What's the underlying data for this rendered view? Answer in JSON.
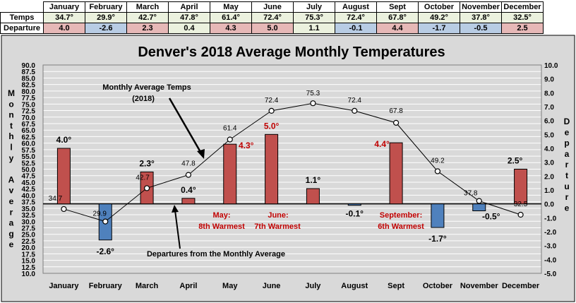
{
  "header_table": {
    "temps_label": "Temps",
    "departure_label": "Departure",
    "columns": [
      {
        "month": "January",
        "temp": "34.7°",
        "dep": "4.0"
      },
      {
        "month": "February",
        "temp": "29.9°",
        "dep": "-2.6"
      },
      {
        "month": "March",
        "temp": "42.7°",
        "dep": "2.3"
      },
      {
        "month": "April",
        "temp": "47.8°",
        "dep": "0.4"
      },
      {
        "month": "May",
        "temp": "61.4°",
        "dep": "4.3"
      },
      {
        "month": "June",
        "temp": "72.4°",
        "dep": "5.0"
      },
      {
        "month": "July",
        "temp": "75.3°",
        "dep": "1.1"
      },
      {
        "month": "August",
        "temp": "72.4°",
        "dep": "-0.1"
      },
      {
        "month": "Sept",
        "temp": "67.8°",
        "dep": "4.4"
      },
      {
        "month": "October",
        "temp": "49.2°",
        "dep": "-1.7"
      },
      {
        "month": "November",
        "temp": "37.8°",
        "dep": "-0.5"
      },
      {
        "month": "December",
        "temp": "32.5°",
        "dep": "2.5"
      }
    ],
    "colors": {
      "warm_cell": "#e6b8b7",
      "cool_cell": "#b8cce4",
      "neutral_cell": "#ebf1de"
    }
  },
  "chart_data": {
    "type": "bar",
    "title": "Denver's 2018 Average Monthly Temperatures",
    "categories": [
      "January",
      "February",
      "March",
      "April",
      "May",
      "June",
      "July",
      "August",
      "Sept",
      "October",
      "November",
      "December"
    ],
    "series": [
      {
        "chart_type": "line",
        "axis": "left",
        "values": [
          34.7,
          29.9,
          42.7,
          47.8,
          61.4,
          72.4,
          75.3,
          72.4,
          67.8,
          49.2,
          37.8,
          32.5
        ],
        "data_labels": [
          "34.7",
          "29.9",
          "42.7",
          "47.8",
          "61.4",
          "72.4",
          "75.3",
          "72.4",
          "67.8",
          "49.2",
          "37.8",
          "32.5"
        ]
      },
      {
        "chart_type": "bar",
        "axis": "right",
        "values": [
          4.0,
          -2.6,
          2.3,
          0.4,
          4.3,
          5.0,
          1.1,
          -0.1,
          4.4,
          -1.7,
          -0.5,
          2.5
        ],
        "data_labels": [
          "4.0°",
          "-2.6°",
          "2.3°",
          "0.4°",
          "4.3°",
          "5.0°",
          "1.1°",
          "-0.1°",
          "4.4°",
          "-1.7°",
          "-0.5°",
          "2.5°"
        ]
      }
    ],
    "left_axis": {
      "label_letters": [
        "M",
        "o",
        "n",
        "t",
        "h",
        "l",
        "y",
        "",
        "A",
        "v",
        "e",
        "r",
        "a",
        "g",
        "e"
      ],
      "ylim": [
        10,
        90
      ],
      "ticks": [
        "10.0",
        "12.5",
        "15.0",
        "17.5",
        "20.0",
        "22.5",
        "25.0",
        "27.5",
        "30.0",
        "32.5",
        "35.0",
        "37.5",
        "40.0",
        "42.5",
        "45.0",
        "47.5",
        "50.0",
        "52.5",
        "55.0",
        "57.5",
        "60.0",
        "62.5",
        "65.0",
        "67.5",
        "70.0",
        "72.5",
        "75.0",
        "77.5",
        "80.0",
        "82.5",
        "85.0",
        "87.5",
        "90.0"
      ]
    },
    "right_axis": {
      "label_letters": [
        "D",
        "e",
        "p",
        "a",
        "r",
        "t",
        "u",
        "r",
        "e"
      ],
      "ylim": [
        -5,
        10
      ],
      "ticks": [
        "-5.0",
        "-4.0",
        "-3.0",
        "-2.0",
        "-1.0",
        "0.0",
        "1.0",
        "2.0",
        "3.0",
        "4.0",
        "5.0",
        "6.0",
        "7.0",
        "8.0",
        "9.0",
        "10.0"
      ]
    },
    "grid": true,
    "annotations": {
      "line_note_1": "Monthly Average Temps",
      "line_note_2": "(2018)",
      "bar_note": "Departures from the Monthly Average",
      "may_1": "May:",
      "may_2": "8th Warmest",
      "june_1": "June:",
      "june_2": "7th Warmest",
      "sept_1": "September:",
      "sept_2": "6th Warmest"
    },
    "highlighted_labels": [
      "May",
      "June",
      "Sept"
    ],
    "colors": {
      "plot_bg": "#d9d9d9",
      "warm_bar": "#c0504d",
      "cool_bar": "#4f81bd",
      "highlight_text": "#c00000",
      "line": "#000000"
    }
  }
}
